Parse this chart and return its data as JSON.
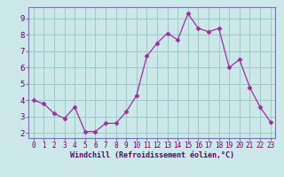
{
  "x": [
    0,
    1,
    2,
    3,
    4,
    5,
    6,
    7,
    8,
    9,
    10,
    11,
    12,
    13,
    14,
    15,
    16,
    17,
    18,
    19,
    20,
    21,
    22,
    23
  ],
  "y": [
    4.0,
    3.8,
    3.2,
    2.9,
    3.6,
    2.1,
    2.1,
    2.6,
    2.6,
    3.3,
    4.3,
    6.7,
    7.5,
    8.1,
    7.7,
    9.3,
    8.4,
    8.2,
    8.4,
    6.0,
    6.5,
    4.8,
    3.6,
    2.7
  ],
  "line_color": "#993399",
  "marker": "D",
  "marker_size": 2.5,
  "bg_color": "#cce8e8",
  "grid_color": "#99cccc",
  "xlabel": "Windchill (Refroidissement éolien,°C)",
  "xlabel_color": "#660066",
  "tick_color": "#660066",
  "ylabel_ticks": [
    2,
    3,
    4,
    5,
    6,
    7,
    8,
    9
  ],
  "xlim": [
    -0.5,
    23.5
  ],
  "ylim": [
    1.7,
    9.7
  ],
  "spine_color": "#7777aa",
  "tick_fontsize": 5.5,
  "xlabel_fontsize": 6.0,
  "ytick_fontsize": 6.5
}
